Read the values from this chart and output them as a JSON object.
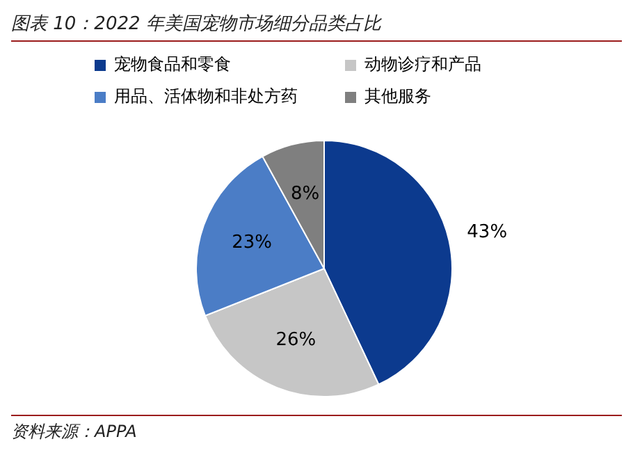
{
  "chart_data": {
    "type": "pie",
    "title": "图表 10：2022 年美国宠物市场细分品类占比",
    "categories": [
      "宠物食品和零食",
      "动物诊疗和产品",
      "用品、活体物和非处方药",
      "其他服务"
    ],
    "values": [
      43,
      26,
      23,
      8
    ],
    "colors": [
      "#0c3a8e",
      "#c6c6c6",
      "#4b7dc6",
      "#7f7f7f"
    ],
    "value_labels": [
      "43%",
      "26%",
      "23%",
      "8%"
    ],
    "legend": "top",
    "annotations": [
      "资料来源：APPA"
    ]
  }
}
